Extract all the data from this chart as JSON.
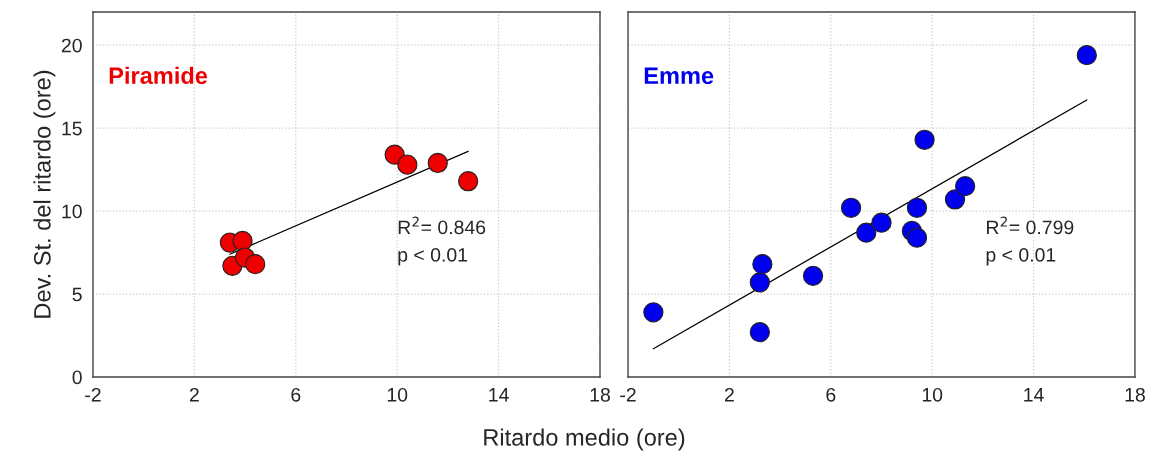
{
  "chart_data": [
    {
      "type": "scatter",
      "xlabel": "Ritardo medio (ore)",
      "ylabel": "Dev. St. del ritardo (ore)",
      "xlim": [
        -2,
        18
      ],
      "xticks": [
        -2,
        2,
        6,
        10,
        14,
        18
      ],
      "ylim": [
        0,
        22
      ],
      "yticks": [
        0,
        5,
        10,
        15,
        20
      ],
      "grid": true,
      "series": [
        {
          "name": "Piramide",
          "color": "#ee0000",
          "marker": "circle",
          "x": [
            3.4,
            3.9,
            3.5,
            4.0,
            4.4,
            9.9,
            10.4,
            11.6,
            12.8
          ],
          "values": [
            8.1,
            8.2,
            6.7,
            7.2,
            6.8,
            13.4,
            12.8,
            12.9,
            11.8
          ]
        },
        {
          "type": "line",
          "color": "#000000",
          "marker": "none",
          "x": [
            3.4,
            12.8
          ],
          "values": [
            7.4,
            13.6
          ]
        }
      ],
      "annotations": [
        "R$^{2}$= 0.846",
        "p < 0.01"
      ]
    },
    {
      "type": "scatter",
      "xlim": [
        -2,
        18
      ],
      "xticks": [
        -2,
        2,
        6,
        10,
        14,
        18
      ],
      "ylim": [
        0,
        22
      ],
      "yticks": [
        0,
        5,
        10,
        15,
        20
      ],
      "grid": true,
      "tick_labels": "x",
      "series": [
        {
          "name": "Emme",
          "color": "#0000ee",
          "marker": "circle",
          "x": [
            -1.0,
            3.2,
            3.2,
            3.3,
            5.3,
            6.8,
            7.4,
            8.0,
            9.2,
            9.4,
            9.4,
            9.7,
            10.9,
            11.3,
            16.1
          ],
          "values": [
            3.9,
            2.7,
            5.7,
            6.8,
            6.1,
            10.2,
            8.7,
            9.3,
            8.8,
            8.4,
            10.2,
            14.3,
            10.7,
            11.5,
            19.4
          ]
        },
        {
          "type": "line",
          "color": "#000000",
          "marker": "none",
          "x": [
            -1.0,
            16.1
          ],
          "values": [
            1.7,
            16.7
          ]
        }
      ],
      "annotations": [
        "R$^{2}$= 0.799",
        "p < 0.01"
      ]
    }
  ]
}
